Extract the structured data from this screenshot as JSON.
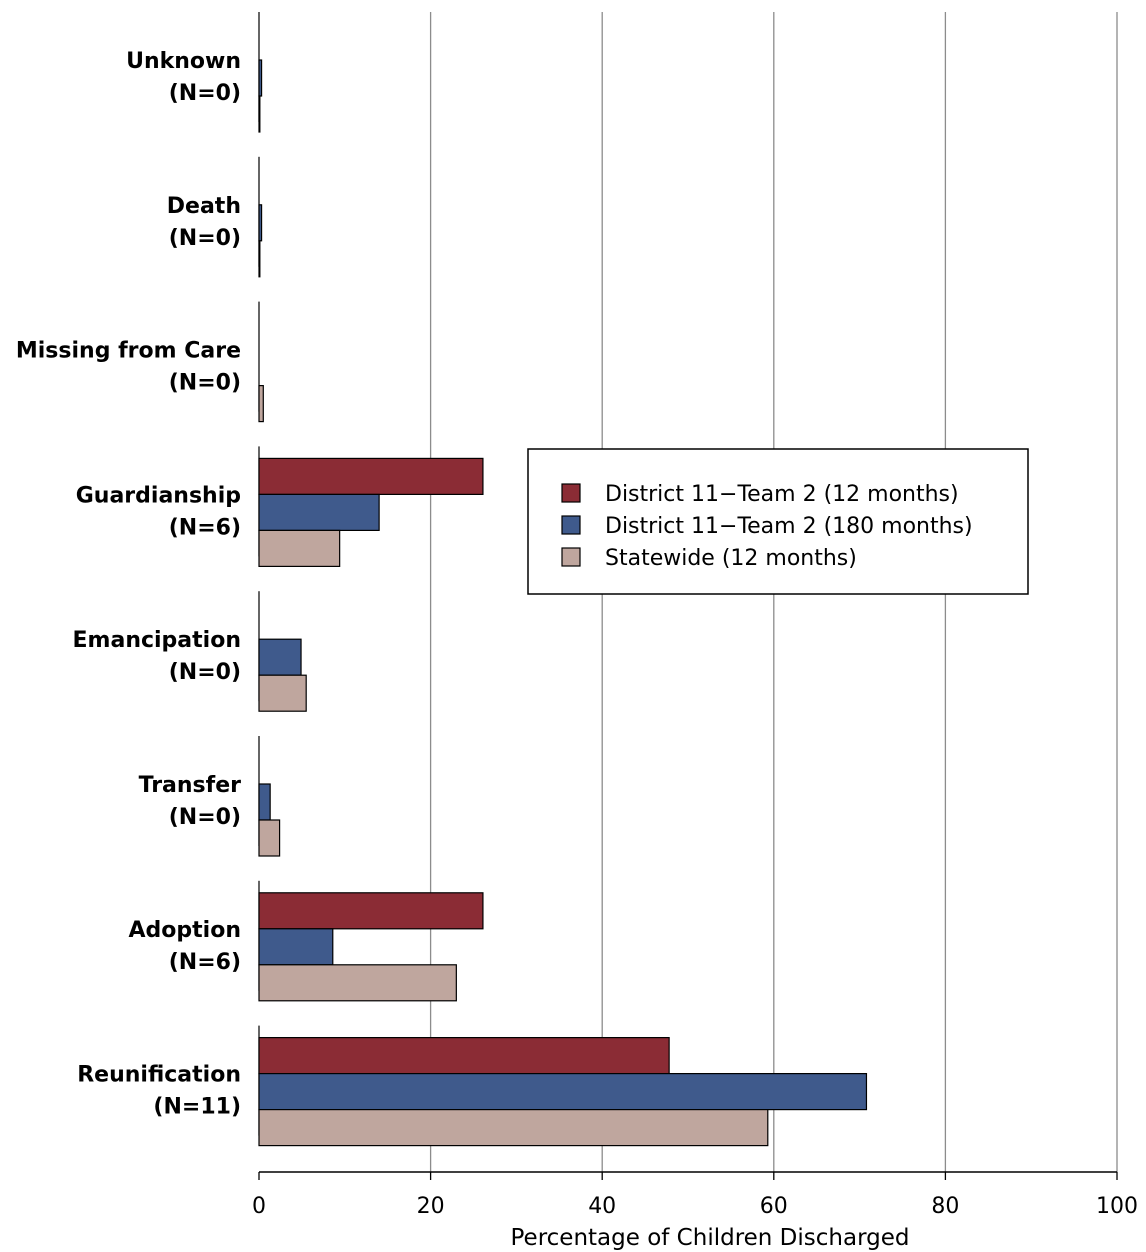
{
  "chart_data": {
    "type": "bar",
    "orientation": "horizontal",
    "xlabel": "Percentage of Children Discharged",
    "xlim": [
      0,
      100
    ],
    "x_ticks": [
      0,
      20,
      40,
      60,
      80,
      100
    ],
    "grid": "vertical",
    "legend_position": "center-right",
    "categories": [
      {
        "name": "Unknown",
        "n": "(N=0)"
      },
      {
        "name": "Death",
        "n": "(N=0)"
      },
      {
        "name": "Missing from Care",
        "n": "(N=0)"
      },
      {
        "name": "Guardianship",
        "n": "(N=6)"
      },
      {
        "name": "Emancipation",
        "n": "(N=0)"
      },
      {
        "name": "Transfer",
        "n": "(N=0)"
      },
      {
        "name": "Adoption",
        "n": "(N=6)"
      },
      {
        "name": "Reunification",
        "n": "(N=11)"
      }
    ],
    "series": [
      {
        "name": "District 11−Team 2 (12 months)",
        "color": "#8b2c35",
        "values": [
          0,
          0,
          0,
          26.1,
          0,
          0,
          26.1,
          47.8
        ]
      },
      {
        "name": "District 11−Team 2 (180 months)",
        "color": "#3f5a8c",
        "values": [
          0.3,
          0.3,
          0,
          14.0,
          4.9,
          1.3,
          8.6,
          70.8
        ]
      },
      {
        "name": "Statewide (12 months)",
        "color": "#bfa69e",
        "values": [
          0.1,
          0.1,
          0.5,
          9.4,
          5.5,
          2.4,
          23.0,
          59.3
        ]
      }
    ]
  }
}
